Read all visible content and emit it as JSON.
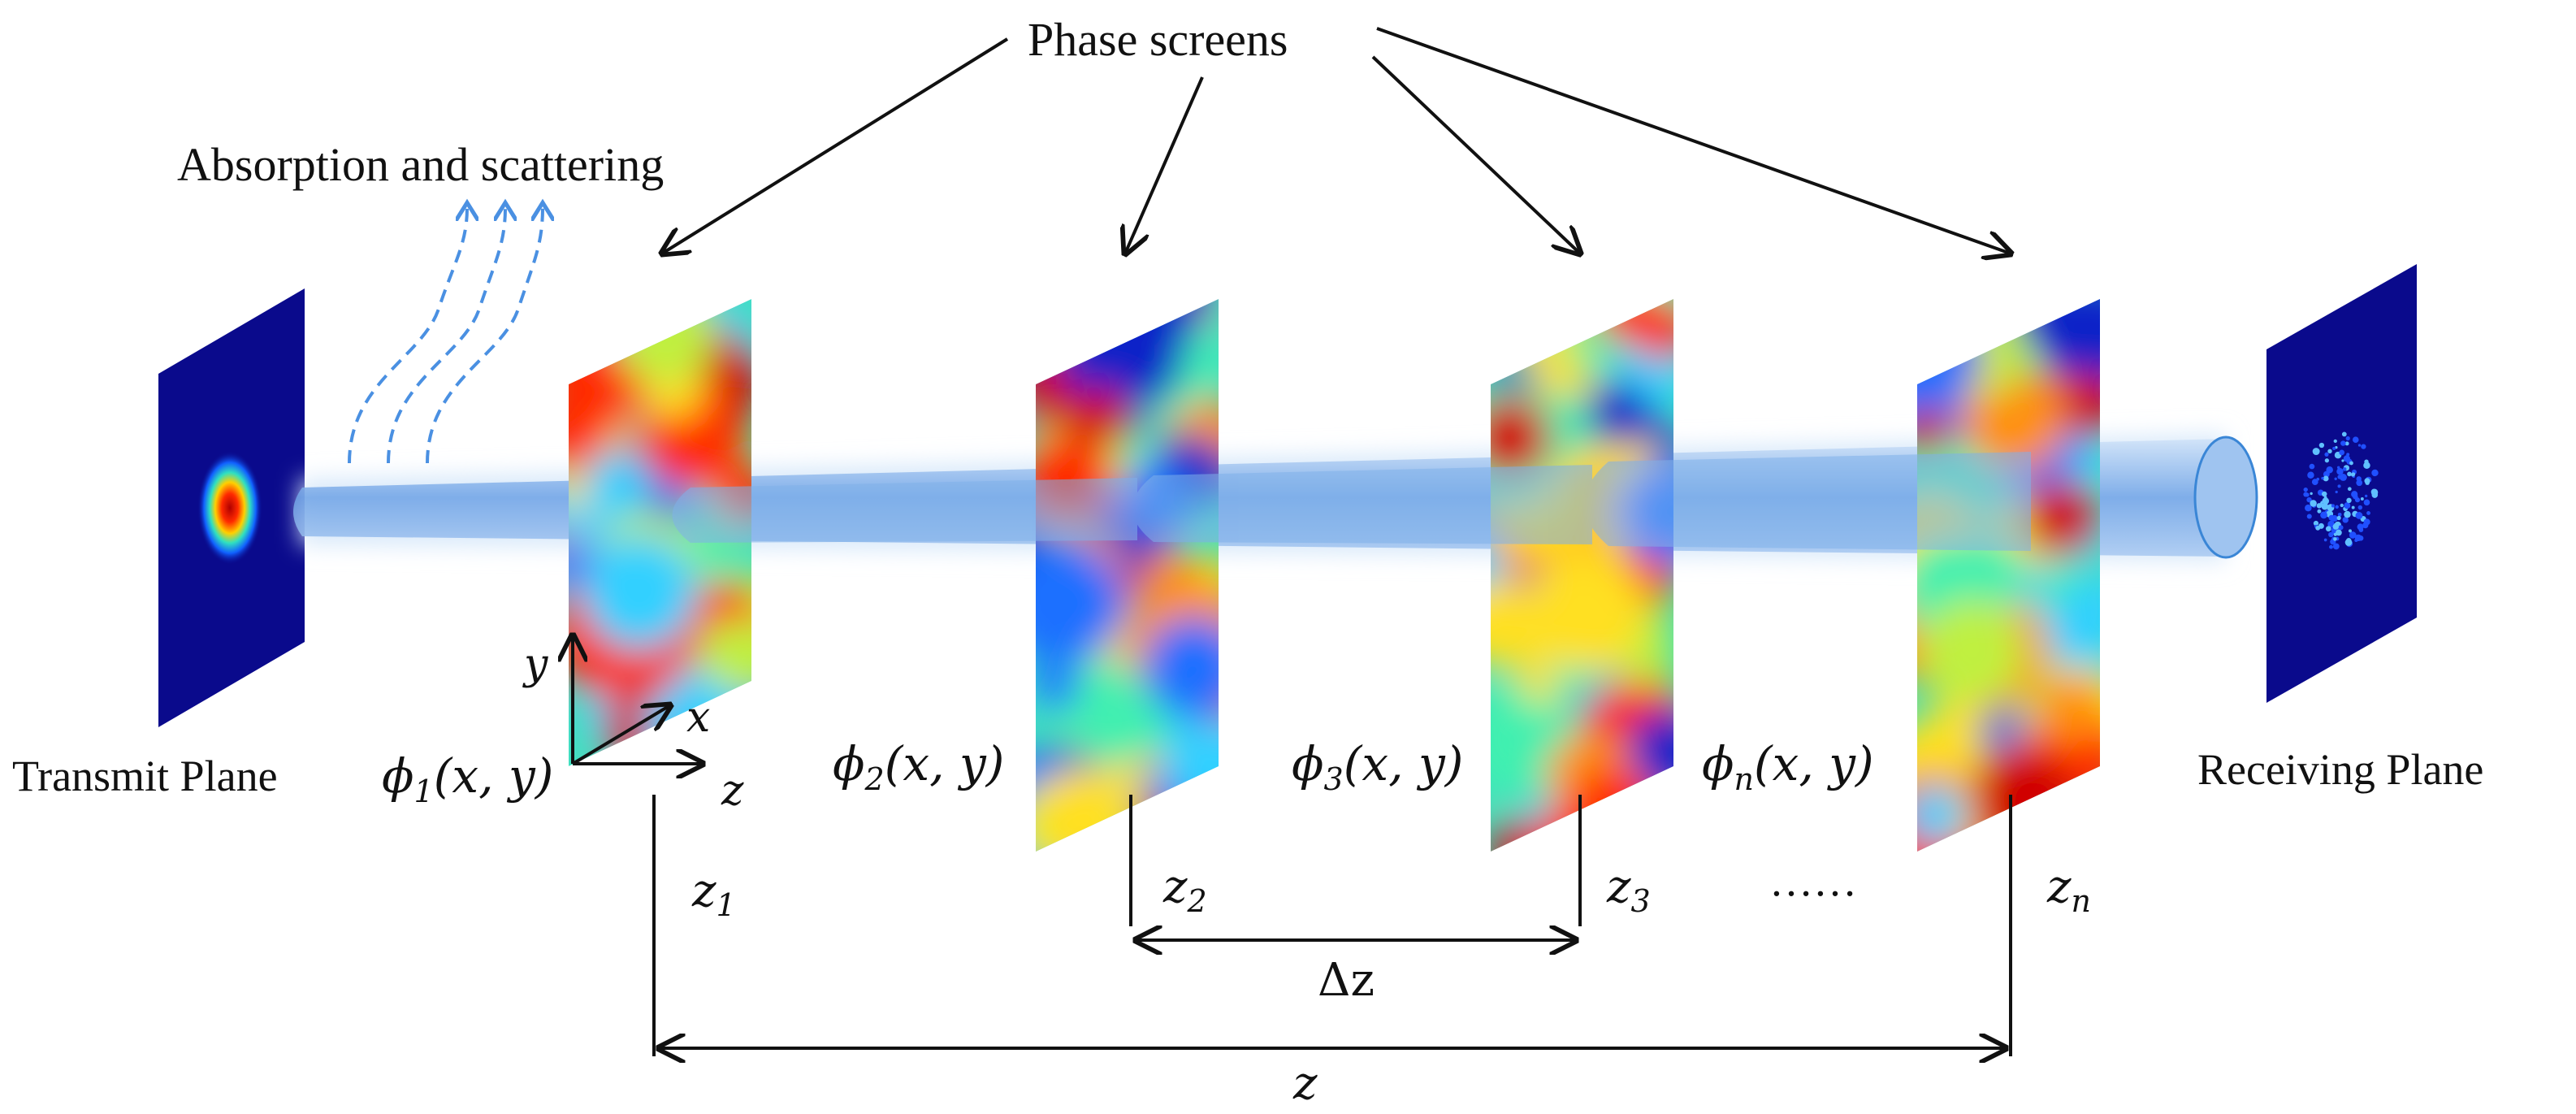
{
  "labels": {
    "phase_screens": "Phase screens",
    "absorption": "Absorption and scattering",
    "transmit_plane": "Transmit Plane",
    "receiving_plane": "Receiving Plane",
    "ellipsis": "……"
  },
  "axes": {
    "y": "y",
    "x": "x",
    "z": "z"
  },
  "phi": [
    {
      "sym": "ϕ",
      "sub": "1",
      "args": "(x, y)"
    },
    {
      "sym": "ϕ",
      "sub": "2",
      "args": "(x, y)"
    },
    {
      "sym": "ϕ",
      "sub": "3",
      "args": "(x, y)"
    },
    {
      "sym": "ϕ",
      "sub": "n",
      "args": "(x, y)"
    }
  ],
  "positions": [
    {
      "sym": "z",
      "sub": "1"
    },
    {
      "sym": "z",
      "sub": "2"
    },
    {
      "sym": "z",
      "sub": "3"
    },
    {
      "sym": "z",
      "sub": "n"
    }
  ],
  "dz": "Δz",
  "total_z": "z",
  "colors": {
    "beam": "#8db8ec",
    "beam_glow": "#d7e8fa",
    "arrow_dashed": "#4a90e2",
    "plane_dark": "#0a0a8c",
    "line": "#111111"
  }
}
